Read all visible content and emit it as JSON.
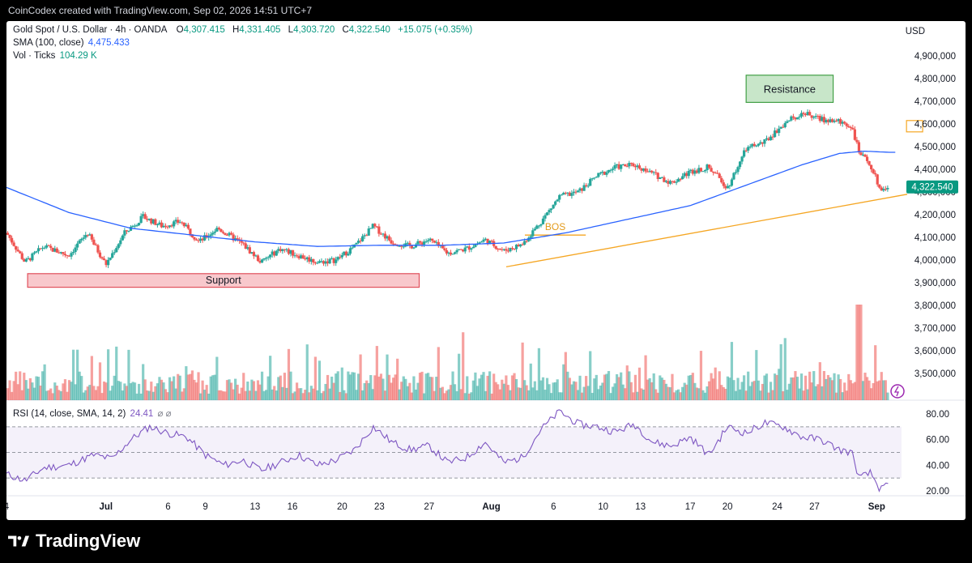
{
  "credit": "CoinCodex created with TradingView.com, Sep 02, 2026 14:51 UTC+7",
  "brand": "TradingView",
  "currency": "USD",
  "legend": {
    "symbol": "Gold Spot / U.S. Dollar · 4h · OANDA",
    "o_label": "O",
    "o_val": "4,307.415",
    "h_label": "H",
    "h_val": "4,331.405",
    "l_label": "L",
    "l_val": "4,303.720",
    "c_label": "C",
    "c_val": "4,322.540",
    "change": "+15.075 (+0.35%)",
    "sma_label": "SMA (100, close)",
    "sma_val": "4,475.433",
    "vol_label": "Vol · Ticks",
    "vol_val": "104.29 K",
    "rsi_label": "RSI (14, close, SMA, 14, 2)",
    "rsi_val": "24.41",
    "rsi_extra": "⌀ ⌀"
  },
  "colors": {
    "up": "#26a69a",
    "down": "#ef5350",
    "sma": "#2962ff",
    "rsi": "#7e57c2",
    "trend": "#f5a623",
    "support_fill": "#f8c8cc",
    "support_stroke": "#e0505c",
    "resistance_fill": "#c8e6c9",
    "resistance_stroke": "#43a047",
    "last_price_bg": "#089981"
  },
  "annotations": {
    "resistance": "Resistance",
    "support": "Support",
    "bos": "BOS",
    "last_price": "4,322.540"
  },
  "chart_data": [
    {
      "type": "candlestick",
      "title": "Gold Spot / U.S. Dollar · 4h · OANDA",
      "ylabel": "USD",
      "ylim": [
        3400000,
        4950000
      ],
      "yticks": [
        3500000,
        3600000,
        3700000,
        3800000,
        3900000,
        4000000,
        4100000,
        4200000,
        4300000,
        4400000,
        4500000,
        4600000,
        4700000,
        4800000,
        4900000
      ],
      "ytick_labels": [
        "3,500,000",
        "3,600,000",
        "3,700,000",
        "3,800,000",
        "3,900,000",
        "4,000,000",
        "4,100,000",
        "4,200,000",
        "4,300,000",
        "4,400,000",
        "4,500,000",
        "4,600,000",
        "4,700,000",
        "4,800,000",
        "4,900,000"
      ],
      "xticks": [
        {
          "label": "4",
          "day": 0
        },
        {
          "label": "Jul",
          "day": 8
        },
        {
          "label": "6",
          "day": 13
        },
        {
          "label": "9",
          "day": 16
        },
        {
          "label": "13",
          "day": 20
        },
        {
          "label": "16",
          "day": 23
        },
        {
          "label": "20",
          "day": 27
        },
        {
          "label": "23",
          "day": 30
        },
        {
          "label": "27",
          "day": 34
        },
        {
          "label": "Aug",
          "day": 39
        },
        {
          "label": "6",
          "day": 44
        },
        {
          "label": "10",
          "day": 48
        },
        {
          "label": "13",
          "day": 51
        },
        {
          "label": "17",
          "day": 55
        },
        {
          "label": "20",
          "day": 58
        },
        {
          "label": "24",
          "day": 62
        },
        {
          "label": "27",
          "day": 65
        },
        {
          "label": "Sep",
          "day": 70
        }
      ],
      "price_path": [
        [
          0,
          4120000
        ],
        [
          1.5,
          3990000
        ],
        [
          3,
          4060000
        ],
        [
          5,
          4020000
        ],
        [
          6.5,
          4120000
        ],
        [
          8,
          3980000
        ],
        [
          9.5,
          4120000
        ],
        [
          11,
          4190000
        ],
        [
          12.5,
          4150000
        ],
        [
          14,
          4170000
        ],
        [
          15.5,
          4080000
        ],
        [
          17,
          4140000
        ],
        [
          19,
          4070000
        ],
        [
          20.5,
          3990000
        ],
        [
          22,
          4050000
        ],
        [
          23.5,
          4020000
        ],
        [
          25,
          3990000
        ],
        [
          26.5,
          4000000
        ],
        [
          28,
          4060000
        ],
        [
          29.5,
          4150000
        ],
        [
          31,
          4080000
        ],
        [
          32.5,
          4060000
        ],
        [
          34,
          4090000
        ],
        [
          35.5,
          4030000
        ],
        [
          37,
          4050000
        ],
        [
          38.5,
          4090000
        ],
        [
          40,
          4040000
        ],
        [
          41.5,
          4070000
        ],
        [
          43,
          4170000
        ],
        [
          44.5,
          4280000
        ],
        [
          46,
          4300000
        ],
        [
          47.5,
          4370000
        ],
        [
          49,
          4410000
        ],
        [
          50.5,
          4420000
        ],
        [
          52,
          4380000
        ],
        [
          53.5,
          4340000
        ],
        [
          55,
          4390000
        ],
        [
          56.5,
          4410000
        ],
        [
          58,
          4320000
        ],
        [
          59.5,
          4490000
        ],
        [
          61,
          4520000
        ],
        [
          62.5,
          4600000
        ],
        [
          64,
          4650000
        ],
        [
          65.5,
          4620000
        ],
        [
          67,
          4610000
        ],
        [
          68,
          4590000
        ],
        [
          68.6,
          4470000
        ],
        [
          69.5,
          4420000
        ],
        [
          70.3,
          4310000
        ],
        [
          71,
          4322540
        ]
      ],
      "sma_path": [
        [
          0,
          4320000
        ],
        [
          5,
          4210000
        ],
        [
          10,
          4140000
        ],
        [
          15,
          4110000
        ],
        [
          20,
          4080000
        ],
        [
          25,
          4060000
        ],
        [
          30,
          4065000
        ],
        [
          35,
          4065000
        ],
        [
          40,
          4075000
        ],
        [
          45,
          4120000
        ],
        [
          50,
          4180000
        ],
        [
          55,
          4240000
        ],
        [
          60,
          4340000
        ],
        [
          64,
          4420000
        ],
        [
          67,
          4470000
        ],
        [
          69,
          4480000
        ],
        [
          71,
          4475000
        ]
      ],
      "volume_baseline": 3400000,
      "volume_max_value": 3800000
    },
    {
      "type": "line",
      "title": "RSI (14, close, SMA, 14, 2)",
      "ylim": [
        10,
        90
      ],
      "yticks": [
        20,
        40,
        60,
        80
      ],
      "ytick_labels": [
        "20.00",
        "40.00",
        "60.00",
        "80.00"
      ],
      "bands": [
        30,
        50,
        70
      ],
      "last_value": 24.41,
      "path": [
        [
          0,
          33
        ],
        [
          1.5,
          28
        ],
        [
          3,
          38
        ],
        [
          5,
          40
        ],
        [
          7,
          48
        ],
        [
          8.5,
          45
        ],
        [
          10,
          60
        ],
        [
          11.5,
          70
        ],
        [
          13,
          65
        ],
        [
          14.5,
          62
        ],
        [
          16,
          48
        ],
        [
          17.5,
          40
        ],
        [
          19,
          44
        ],
        [
          20.5,
          36
        ],
        [
          22,
          42
        ],
        [
          23.5,
          48
        ],
        [
          25,
          40
        ],
        [
          26.5,
          44
        ],
        [
          28,
          52
        ],
        [
          29.5,
          70
        ],
        [
          31,
          58
        ],
        [
          32.5,
          52
        ],
        [
          34,
          55
        ],
        [
          35.5,
          42
        ],
        [
          37,
          46
        ],
        [
          38.5,
          58
        ],
        [
          40,
          42
        ],
        [
          41.5,
          46
        ],
        [
          43,
          68
        ],
        [
          44.5,
          82
        ],
        [
          46,
          72
        ],
        [
          47.5,
          70
        ],
        [
          49,
          66
        ],
        [
          50.5,
          72
        ],
        [
          52,
          58
        ],
        [
          53.5,
          55
        ],
        [
          55,
          62
        ],
        [
          56.5,
          48
        ],
        [
          58,
          70
        ],
        [
          59.5,
          65
        ],
        [
          61,
          73
        ],
        [
          62.5,
          70
        ],
        [
          64,
          62
        ],
        [
          65.5,
          60
        ],
        [
          67,
          52
        ],
        [
          68,
          50
        ],
        [
          68.6,
          30
        ],
        [
          69.5,
          34
        ],
        [
          70.3,
          21
        ],
        [
          71,
          24.41
        ]
      ]
    }
  ]
}
